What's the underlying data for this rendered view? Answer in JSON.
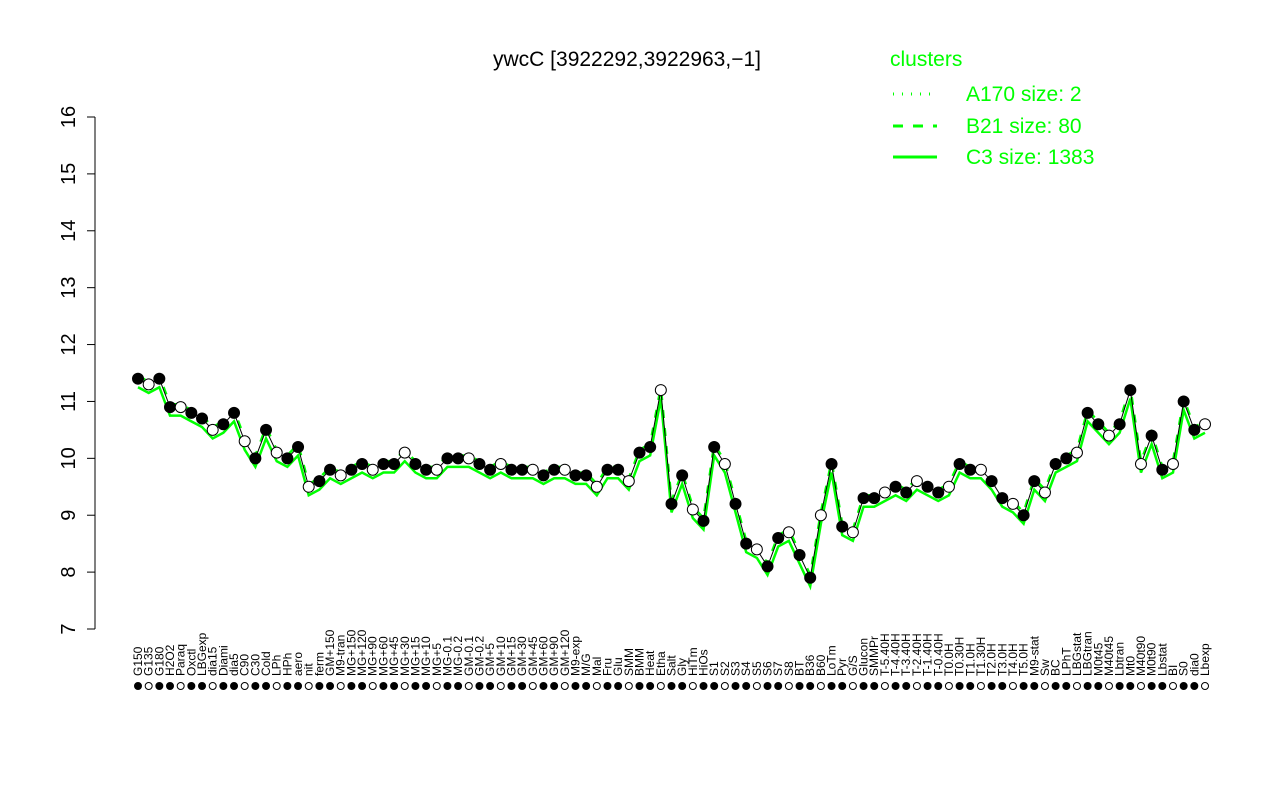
{
  "chart_data": {
    "type": "line",
    "title": "ywcC [3922292,3922963,−1]",
    "xlabel": "",
    "ylabel": "",
    "ylim": [
      7,
      16
    ],
    "yticks": [
      7,
      8,
      9,
      10,
      11,
      12,
      13,
      14,
      15,
      16
    ],
    "grid": false,
    "legend": {
      "title": "clusters",
      "position": "top-right",
      "entries": [
        {
          "label": "A170 size: 2",
          "style": "dotted"
        },
        {
          "label": "B21 size: 80",
          "style": "dashed"
        },
        {
          "label": "C3 size: 1383",
          "style": "solid"
        }
      ]
    },
    "colors": {
      "series": "#00ff00",
      "points": "#000000",
      "axis": "#000000"
    },
    "x_tick_labels": [
      "G150",
      "G135",
      "G180",
      "H2O2",
      "Paraq",
      "Oxctl",
      "LBGexp",
      "dia15",
      "Diami",
      "dia5",
      "C90",
      "C30",
      "Cold",
      "LPh",
      "HPh",
      "aero",
      "nit",
      "ferm",
      "GM+150",
      "M9-tran",
      "MG+150",
      "MG+120",
      "MG+90",
      "MG+60",
      "MG+45",
      "MG+30",
      "MG+15",
      "MG+10",
      "MG+5",
      "MG-0.1",
      "MG-0.2",
      "GM-0.1",
      "GM-0.2",
      "GM+5",
      "GM+10",
      "GM+15",
      "GM+30",
      "GM+45",
      "GM+60",
      "GM+90",
      "GM+120",
      "M9-exp",
      "M/G",
      "Mal",
      "Fru",
      "Glu",
      "SMM",
      "BMM",
      "Heat",
      "Etha",
      "Salt",
      "Gly",
      "HiTm",
      "HiOs",
      "S1",
      "S2",
      "S3",
      "S4",
      "S5",
      "S6",
      "S7",
      "S8",
      "BT",
      "B36",
      "B60",
      "LoTm",
      "Pyr",
      "G/S",
      "Glucon",
      "SMMPr",
      "T-5.40H",
      "T-4.40H",
      "T-3.40H",
      "T-2.40H",
      "T-1.40H",
      "T-0.40H",
      "T0.0H",
      "T0.30H",
      "T1.0H",
      "T1.30H",
      "T2.0H",
      "T3.0H",
      "T4.0H",
      "T5.0H",
      "M9-stat",
      "Sw",
      "BC",
      "LPhT",
      "LBGstat",
      "LBGtran",
      "M0t45",
      "M40t45",
      "Lbtran",
      "Mt0",
      "M40t90",
      "M0t90",
      "Lbstat",
      "BI",
      "S0",
      "dia0",
      "Lbexp"
    ],
    "series": [
      {
        "values": [
          11.4,
          11.3,
          11.4,
          10.9,
          10.9,
          10.8,
          10.7,
          10.5,
          10.6,
          10.8,
          10.3,
          10.0,
          10.5,
          10.1,
          10.0,
          10.2,
          9.5,
          9.6,
          9.8,
          9.7,
          9.8,
          9.9,
          9.8,
          9.9,
          9.9,
          10.1,
          9.9,
          9.8,
          9.8,
          10.0,
          10.0,
          10.0,
          9.9,
          9.8,
          9.9,
          9.8,
          9.8,
          9.8,
          9.7,
          9.8,
          9.8,
          9.7,
          9.7,
          9.5,
          9.8,
          9.8,
          9.6,
          10.1,
          10.2,
          11.2,
          9.2,
          9.7,
          9.1,
          8.9,
          10.2,
          9.9,
          9.2,
          8.5,
          8.4,
          8.1,
          8.6,
          8.7,
          8.3,
          7.9,
          9.0,
          9.9,
          8.8,
          8.7,
          9.3,
          9.3,
          9.4,
          9.5,
          9.4,
          9.6,
          9.5,
          9.4,
          9.5,
          9.9,
          9.8,
          9.8,
          9.6,
          9.3,
          9.2,
          9.0,
          9.6,
          9.4,
          9.9,
          10.0,
          10.1,
          10.8,
          10.6,
          10.4,
          10.6,
          11.2,
          9.9,
          10.4,
          9.8,
          9.9,
          11.0,
          10.5,
          10.6
        ]
      }
    ]
  }
}
